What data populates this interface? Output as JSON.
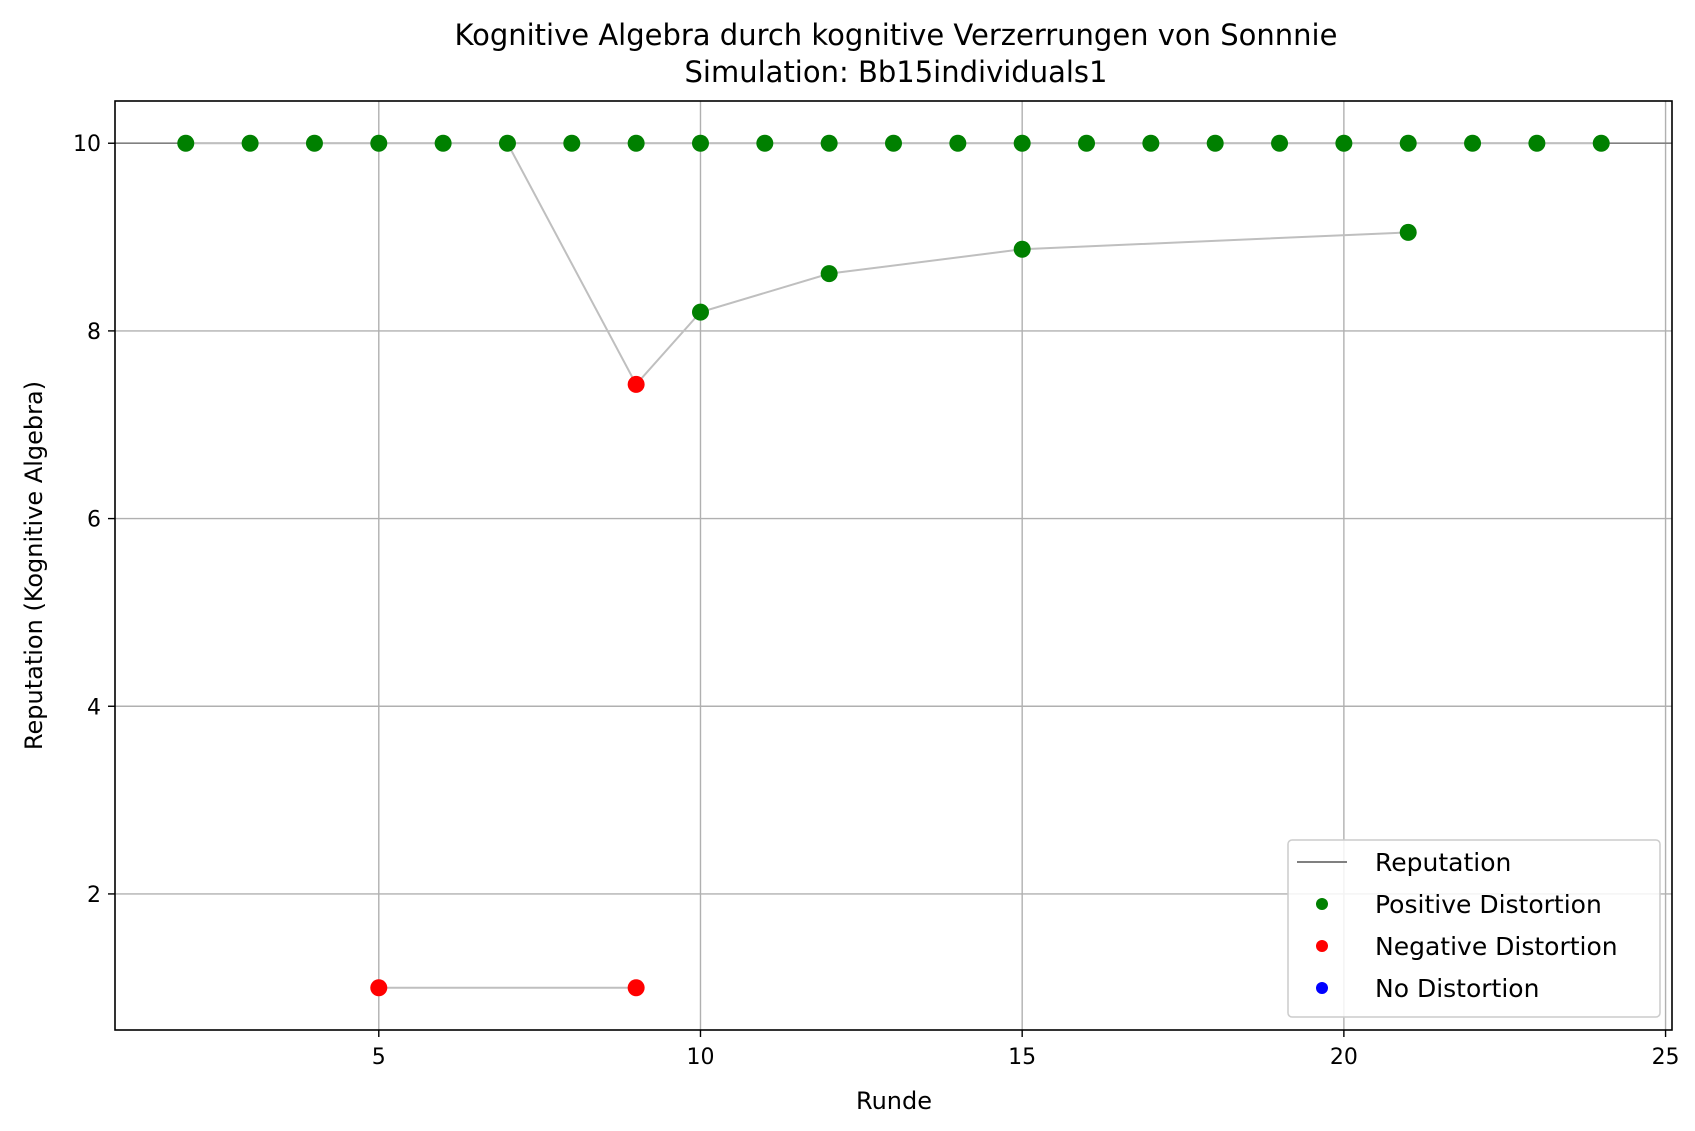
{
  "chart_data": {
    "type": "scatter",
    "title": "Kognitive Algebra durch kognitive Verzerrungen von Sonnnie",
    "subtitle": "Simulation: Bb15individuals1",
    "xlabel": "Runde",
    "ylabel": "Reputation (Kognitive Algebra)",
    "xlim": [
      0.9,
      25.1
    ],
    "ylim": [
      0.55,
      10.45
    ],
    "xticks": [
      5,
      10,
      15,
      20,
      25
    ],
    "yticks": [
      2,
      4,
      6,
      8,
      10
    ],
    "grid": true,
    "legend_position": "lower-right",
    "colors": {
      "reputation_line": "#808080",
      "connector_line": "#bfbfbf",
      "positive": "#008000",
      "negative": "#ff0000",
      "none": "#0000ff",
      "grid": "#b0b0b0"
    },
    "series": [
      {
        "name": "Reputation",
        "kind": "line",
        "x": [
          0.9,
          25.1
        ],
        "y": [
          10,
          10
        ]
      },
      {
        "kind": "connector",
        "x": [
          2,
          3,
          4,
          5,
          6,
          7,
          8,
          9,
          10,
          11,
          12,
          13,
          14,
          15,
          16,
          17,
          18,
          19,
          20,
          21,
          22,
          23,
          24
        ],
        "y": [
          10,
          10,
          10,
          10,
          10,
          10,
          10,
          10,
          10,
          10,
          10,
          10,
          10,
          10,
          10,
          10,
          10,
          10,
          10,
          10,
          10,
          10,
          10
        ]
      },
      {
        "kind": "connector",
        "x": [
          7,
          9,
          10,
          12,
          15,
          21
        ],
        "y": [
          10,
          7.43,
          8.2,
          8.61,
          8.87,
          9.05
        ]
      },
      {
        "kind": "connector",
        "x": [
          5,
          9
        ],
        "y": [
          1,
          1
        ]
      },
      {
        "name": "Positive Distortion",
        "kind": "points",
        "points": [
          [
            2,
            10
          ],
          [
            3,
            10
          ],
          [
            4,
            10
          ],
          [
            5,
            10
          ],
          [
            6,
            10
          ],
          [
            7,
            10
          ],
          [
            8,
            10
          ],
          [
            9,
            10
          ],
          [
            10,
            10
          ],
          [
            11,
            10
          ],
          [
            12,
            10
          ],
          [
            13,
            10
          ],
          [
            14,
            10
          ],
          [
            15,
            10
          ],
          [
            16,
            10
          ],
          [
            17,
            10
          ],
          [
            18,
            10
          ],
          [
            19,
            10
          ],
          [
            20,
            10
          ],
          [
            21,
            10
          ],
          [
            22,
            10
          ],
          [
            23,
            10
          ],
          [
            24,
            10
          ],
          [
            10,
            8.2
          ],
          [
            12,
            8.61
          ],
          [
            15,
            8.87
          ],
          [
            21,
            9.05
          ]
        ]
      },
      {
        "name": "Negative Distortion",
        "kind": "points",
        "points": [
          [
            9,
            7.43
          ],
          [
            5,
            1
          ],
          [
            9,
            1
          ]
        ]
      },
      {
        "name": "No Distortion",
        "kind": "points",
        "points": []
      }
    ],
    "legend": [
      {
        "label": "Reputation",
        "marker": "line",
        "color": "#808080"
      },
      {
        "label": "Positive Distortion",
        "marker": "dot",
        "color": "#008000"
      },
      {
        "label": "Negative Distortion",
        "marker": "dot",
        "color": "#ff0000"
      },
      {
        "label": "No Distortion",
        "marker": "dot",
        "color": "#0000ff"
      }
    ]
  }
}
